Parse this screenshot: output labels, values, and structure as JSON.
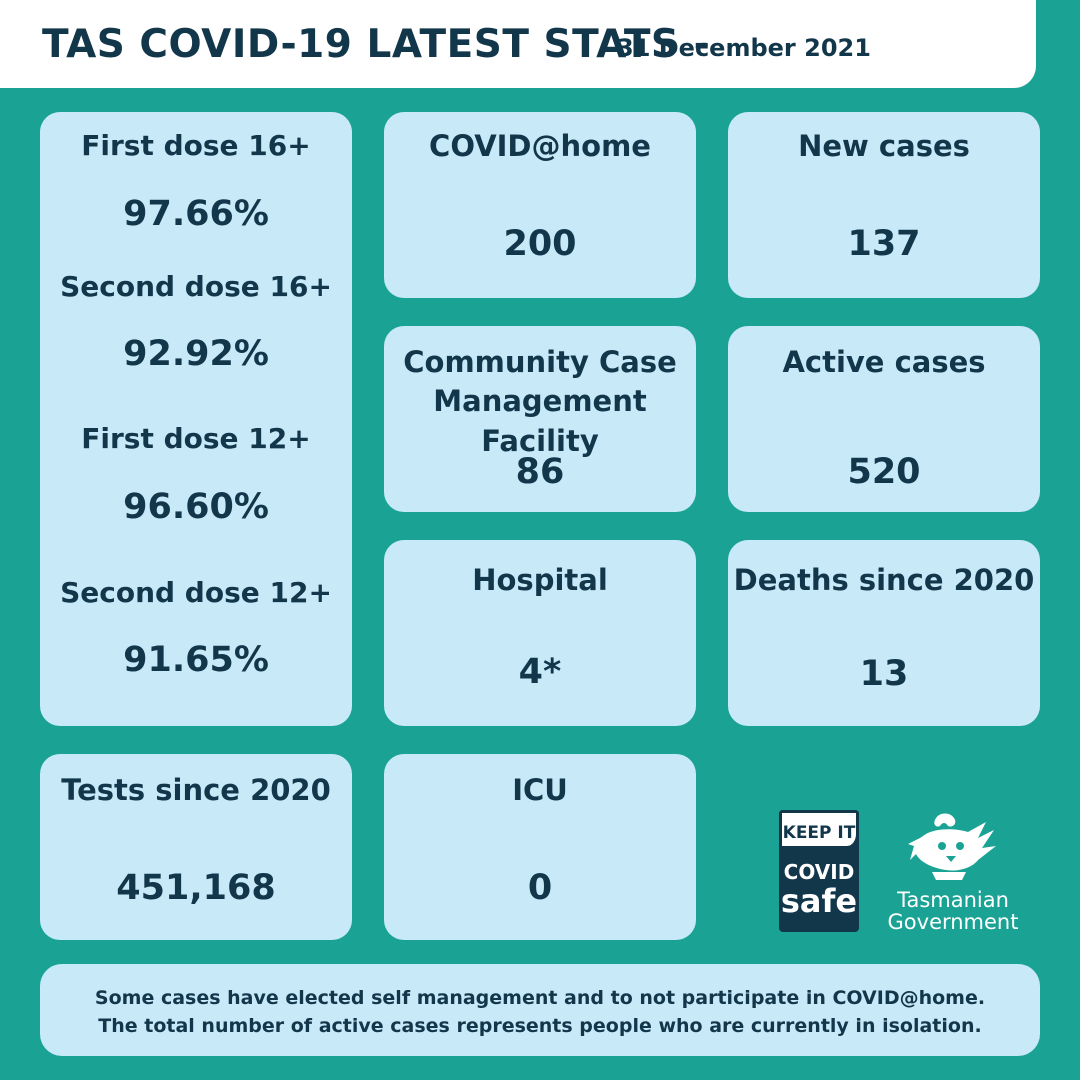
{
  "header": {
    "title": "TAS COVID-19 LATEST STATS -",
    "date": "31 December 2021"
  },
  "vaccination": [
    {
      "label": "First dose 16+",
      "value": "97.66%"
    },
    {
      "label": "Second dose 16+",
      "value": "92.92%"
    },
    {
      "label": "First dose 12+",
      "value": "96.60%"
    },
    {
      "label": "Second dose 12+",
      "value": "91.65%"
    }
  ],
  "covid_at_home": {
    "label": "COVID@home",
    "value": "200"
  },
  "new_cases": {
    "label": "New cases",
    "value": "137"
  },
  "ccmf": {
    "label_line1": "Community Case",
    "label_line2": "Management Facility",
    "value": "86"
  },
  "active_cases": {
    "label": "Active cases",
    "value": "520"
  },
  "hospital": {
    "label": "Hospital",
    "value": "4*"
  },
  "deaths": {
    "label": "Deaths since 2020",
    "value": "13"
  },
  "tests": {
    "label": "Tests since 2020",
    "value": "451,168"
  },
  "icu": {
    "label": "ICU",
    "value": "0"
  },
  "logos": {
    "covidsafe_keep": "KEEP IT",
    "covidsafe_covid": "COVID",
    "covidsafe_safe": "safe",
    "gov_line1": "Tasmanian",
    "gov_line2": "Government"
  },
  "footer": {
    "line1": "Some cases have elected self management and to not participate in COVID@home.",
    "line2": "The total number of active cases represents people who are currently in isolation."
  },
  "colors": {
    "background": "#1aa394",
    "card": "#c8e9f8",
    "text": "#13374a",
    "header": "#ffffff"
  }
}
